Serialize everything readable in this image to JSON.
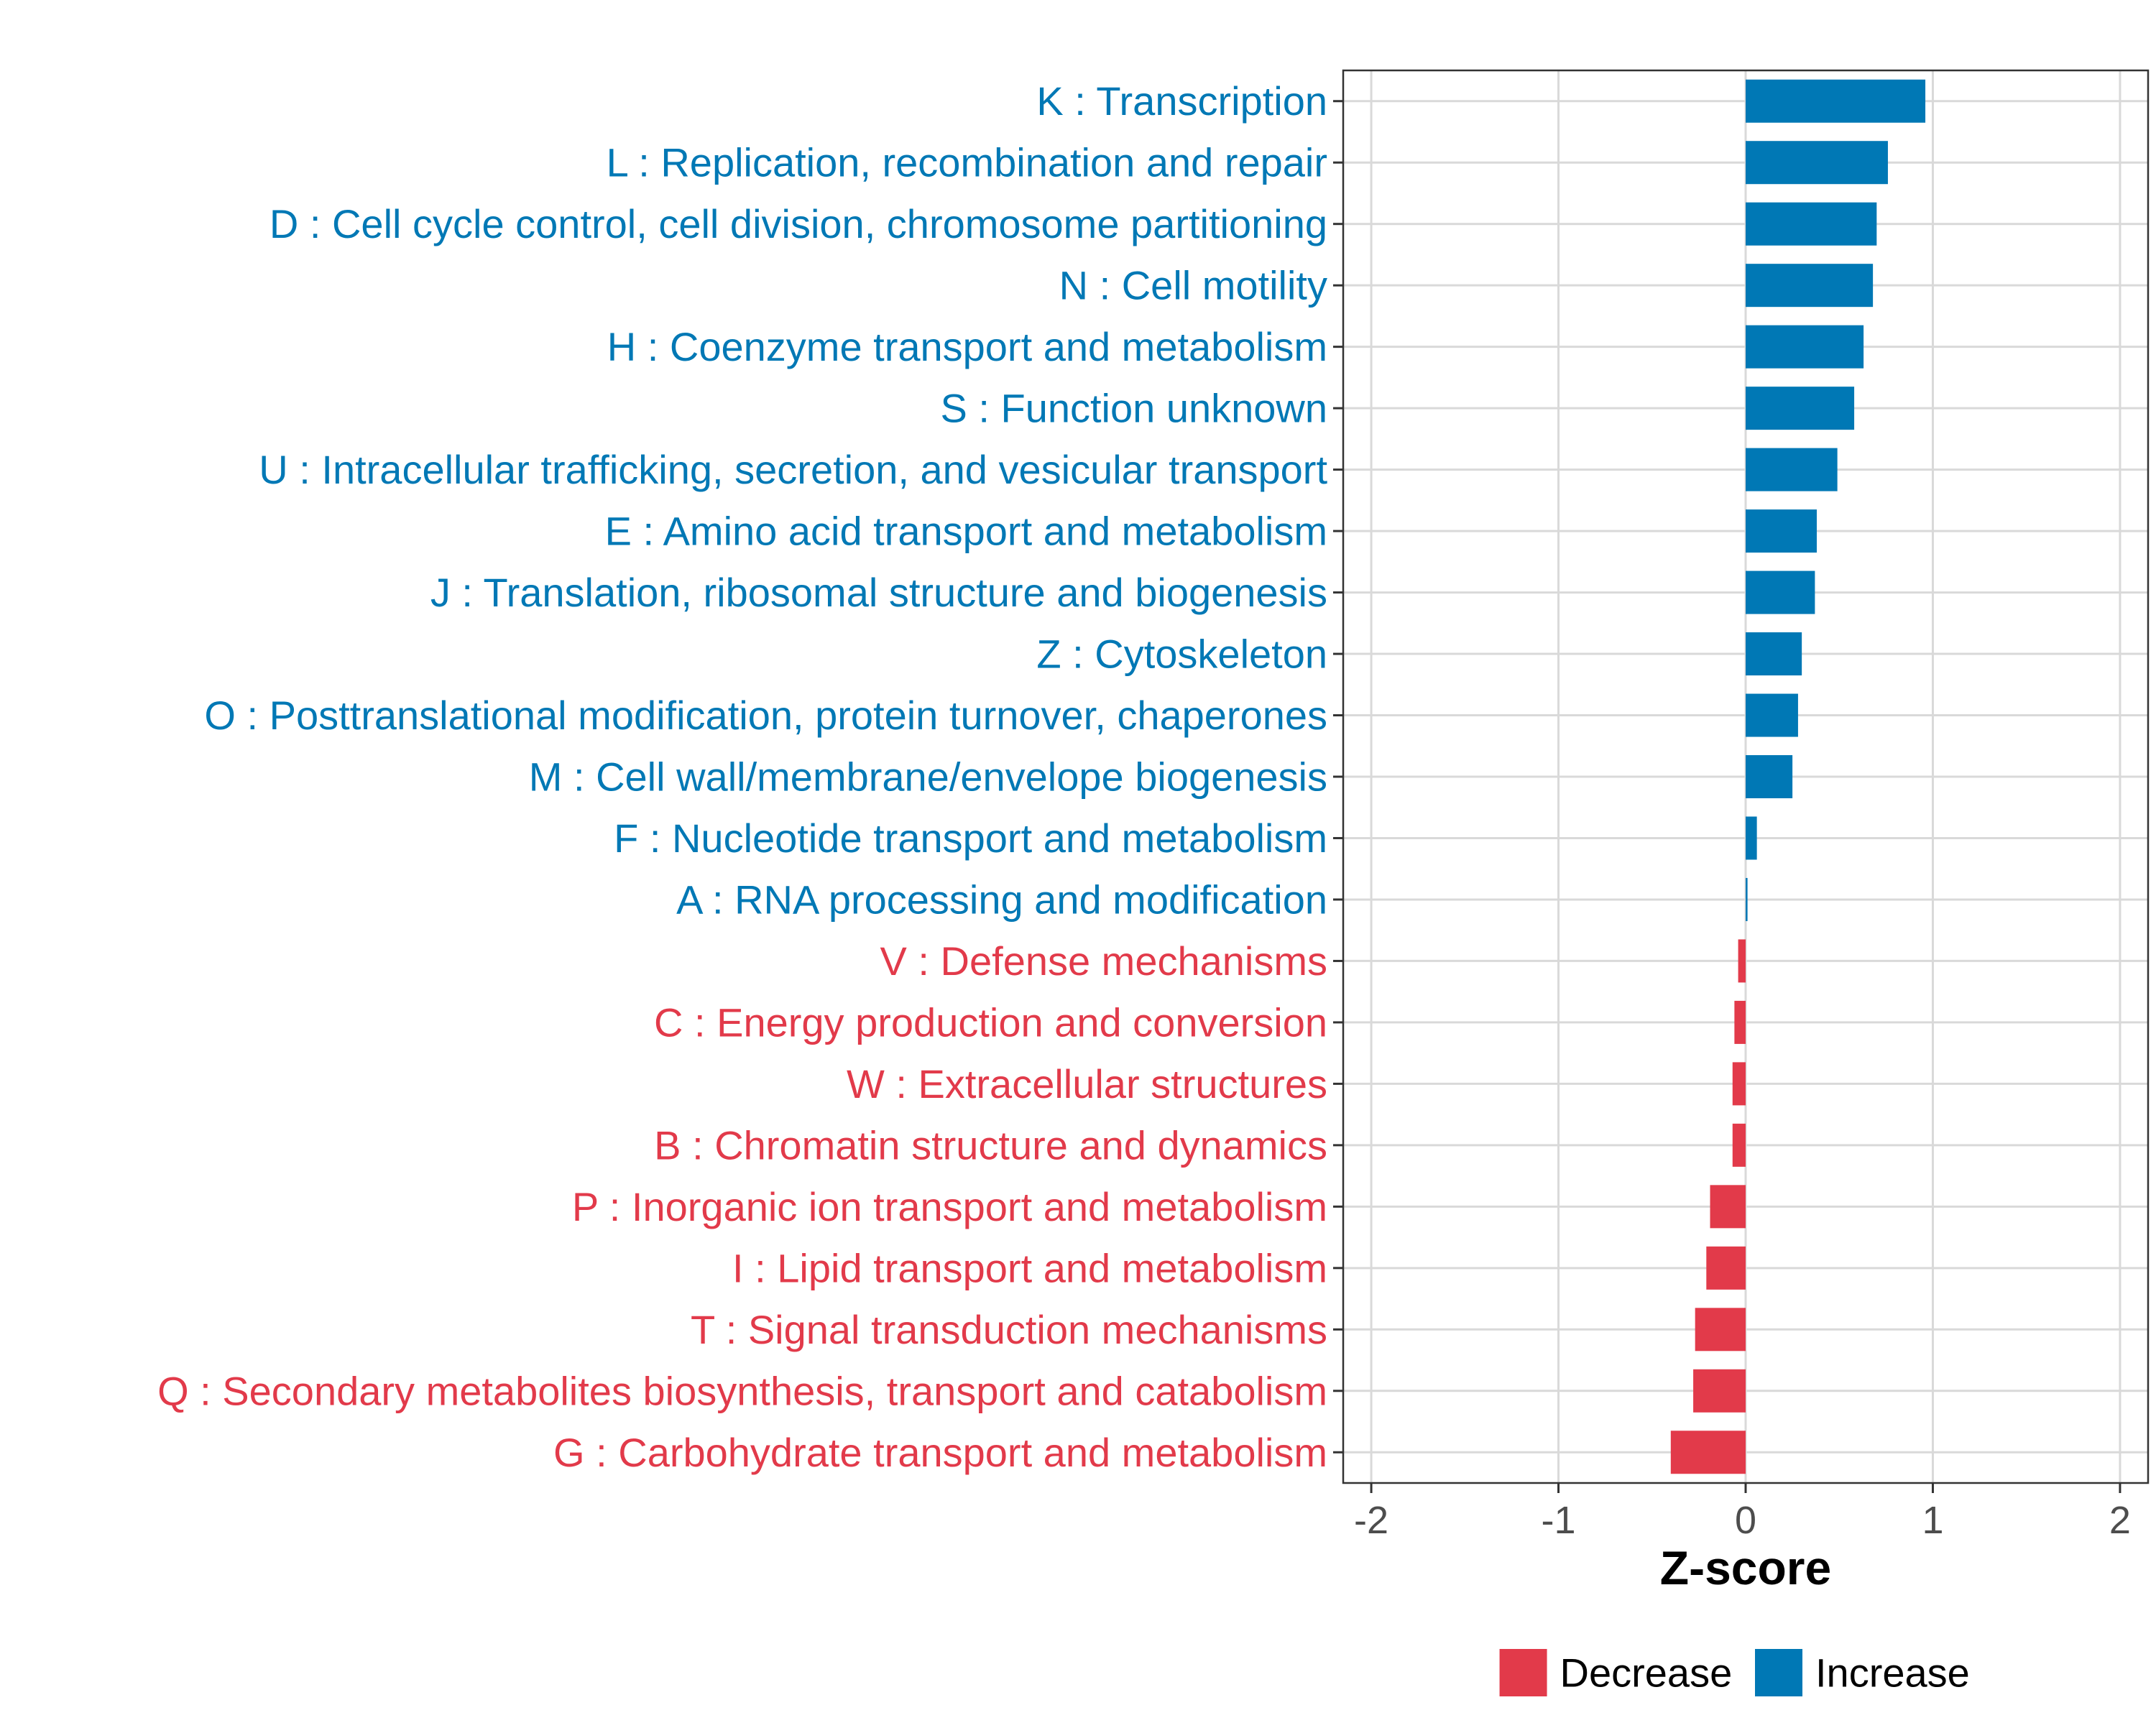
{
  "colors": {
    "increase": "#0078b5",
    "decrease": "#e23a4a",
    "grid": "#d9d9d9",
    "axis_text": "#4d4d4d",
    "panel_border": "#333333"
  },
  "chart_data": {
    "type": "bar",
    "orientation": "horizontal",
    "xlabel": "Z-score",
    "xlim": [
      -2.15,
      2.15
    ],
    "xticks": [
      -2,
      -1,
      0,
      1,
      2
    ],
    "grid": true,
    "legend_position": "bottom",
    "legend": [
      {
        "label": "Decrease",
        "color": "#e23a4a"
      },
      {
        "label": "Increase",
        "color": "#0078b5"
      }
    ],
    "categories": [
      "K : Transcription",
      "L : Replication, recombination and repair",
      "D : Cell cycle control, cell division, chromosome partitioning",
      "N : Cell motility",
      "H : Coenzyme transport and metabolism",
      "S : Function unknown",
      "U : Intracellular trafficking, secretion, and vesicular transport",
      "E : Amino acid transport and metabolism",
      "J : Translation, ribosomal structure and biogenesis",
      "Z : Cytoskeleton",
      "O : Posttranslational modification, protein turnover, chaperones",
      "M : Cell wall/membrane/envelope biogenesis",
      "F : Nucleotide transport and metabolism",
      "A : RNA processing and modification",
      "V : Defense mechanisms",
      "C : Energy production and conversion",
      "W : Extracellular structures",
      "B : Chromatin structure and dynamics",
      "P : Inorganic ion transport and metabolism",
      "I : Lipid transport and metabolism",
      "T : Signal transduction mechanisms",
      "Q : Secondary metabolites biosynthesis, transport and catabolism",
      "G : Carbohydrate transport and metabolism"
    ],
    "values": [
      0.96,
      0.76,
      0.7,
      0.68,
      0.63,
      0.58,
      0.49,
      0.38,
      0.37,
      0.3,
      0.28,
      0.25,
      0.06,
      0.01,
      -0.04,
      -0.06,
      -0.07,
      -0.07,
      -0.19,
      -0.21,
      -0.27,
      -0.28,
      -0.4
    ],
    "direction": [
      "Increase",
      "Increase",
      "Increase",
      "Increase",
      "Increase",
      "Increase",
      "Increase",
      "Increase",
      "Increase",
      "Increase",
      "Increase",
      "Increase",
      "Increase",
      "Increase",
      "Decrease",
      "Decrease",
      "Decrease",
      "Decrease",
      "Decrease",
      "Decrease",
      "Decrease",
      "Decrease",
      "Decrease"
    ]
  }
}
